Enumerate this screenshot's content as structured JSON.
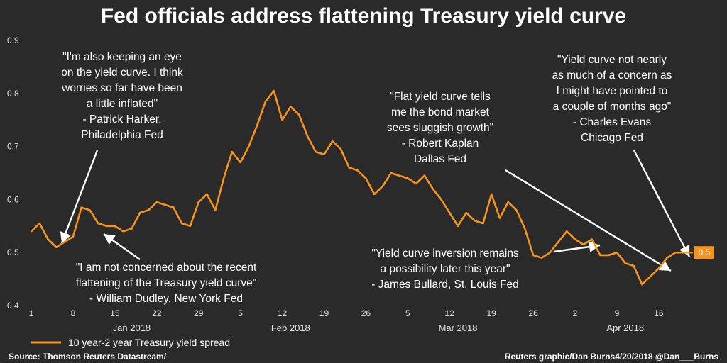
{
  "chart_data": {
    "type": "line",
    "title": "Fed officials address flattening Treasury yield curve",
    "ylim": [
      0.4,
      0.9
    ],
    "yticks": [
      "0.4",
      "0.5",
      "0.6",
      "0.7",
      "0.8",
      "0.9"
    ],
    "xtick_labels": [
      "1",
      "8",
      "15",
      "22",
      "29",
      "5",
      "12",
      "19",
      "26",
      "5",
      "12",
      "19",
      "26",
      "2",
      "9",
      "16"
    ],
    "month_labels": [
      "Jan 2018",
      "Feb 2018",
      "Mar 2018",
      "Apr 2018"
    ],
    "series": [
      {
        "name": "10 year-2 year Treasury yield spread",
        "color": "#f7941d",
        "x": [
          "2018-01-01",
          "2018-01-02",
          "2018-01-03",
          "2018-01-04",
          "2018-01-05",
          "2018-01-08",
          "2018-01-09",
          "2018-01-10",
          "2018-01-11",
          "2018-01-12",
          "2018-01-15",
          "2018-01-16",
          "2018-01-17",
          "2018-01-18",
          "2018-01-19",
          "2018-01-22",
          "2018-01-23",
          "2018-01-24",
          "2018-01-25",
          "2018-01-26",
          "2018-01-29",
          "2018-01-30",
          "2018-01-31",
          "2018-02-01",
          "2018-02-02",
          "2018-02-05",
          "2018-02-06",
          "2018-02-07",
          "2018-02-08",
          "2018-02-09",
          "2018-02-12",
          "2018-02-13",
          "2018-02-14",
          "2018-02-15",
          "2018-02-16",
          "2018-02-19",
          "2018-02-20",
          "2018-02-21",
          "2018-02-22",
          "2018-02-23",
          "2018-02-26",
          "2018-02-27",
          "2018-02-28",
          "2018-03-01",
          "2018-03-02",
          "2018-03-05",
          "2018-03-06",
          "2018-03-07",
          "2018-03-08",
          "2018-03-09",
          "2018-03-12",
          "2018-03-13",
          "2018-03-14",
          "2018-03-15",
          "2018-03-16",
          "2018-03-19",
          "2018-03-20",
          "2018-03-21",
          "2018-03-22",
          "2018-03-23",
          "2018-03-26",
          "2018-03-27",
          "2018-03-28",
          "2018-03-29",
          "2018-03-30",
          "2018-04-02",
          "2018-04-03",
          "2018-04-04",
          "2018-04-05",
          "2018-04-06",
          "2018-04-09",
          "2018-04-10",
          "2018-04-11",
          "2018-04-12",
          "2018-04-13",
          "2018-04-16",
          "2018-04-17",
          "2018-04-18",
          "2018-04-19",
          "2018-04-20"
        ],
        "values": [
          0.54,
          0.555,
          0.525,
          0.51,
          0.52,
          0.53,
          0.585,
          0.58,
          0.555,
          0.55,
          0.55,
          0.54,
          0.545,
          0.575,
          0.58,
          0.595,
          0.59,
          0.585,
          0.555,
          0.55,
          0.595,
          0.61,
          0.58,
          0.64,
          0.69,
          0.67,
          0.7,
          0.74,
          0.785,
          0.805,
          0.75,
          0.775,
          0.76,
          0.72,
          0.69,
          0.685,
          0.71,
          0.695,
          0.66,
          0.655,
          0.64,
          0.61,
          0.625,
          0.65,
          0.645,
          0.64,
          0.63,
          0.645,
          0.62,
          0.6,
          0.575,
          0.55,
          0.575,
          0.56,
          0.555,
          0.61,
          0.565,
          0.595,
          0.58,
          0.545,
          0.495,
          0.49,
          0.5,
          0.52,
          0.54,
          0.525,
          0.515,
          0.525,
          0.495,
          0.495,
          0.5,
          0.48,
          0.475,
          0.44,
          0.455,
          0.47,
          0.49,
          0.5,
          0.5,
          0.5
        ]
      }
    ],
    "last_value_label": "0.5",
    "grid": false,
    "legend": "bottom-left"
  },
  "annotations": [
    {
      "lines": [
        "\"I'm also keeping an eye",
        "on the yield curve. I think",
        "worries so far have been",
        "a little inflated\"",
        "- Patrick Harker,",
        "Philadelphia Fed"
      ]
    },
    {
      "lines": [
        "\"I am not concerned about the recent",
        "flattening of the Treasury yield curve\"",
        "- William Dudley, New York Fed"
      ]
    },
    {
      "lines": [
        "\"Flat yield curve tells",
        "me the bond market",
        "sees sluggish growth\"",
        "- Robert Kaplan",
        "Dallas Fed"
      ]
    },
    {
      "lines": [
        "\"Yield curve not nearly",
        "as much of a concern as",
        "I might have pointed to",
        "a couple of months ago\"",
        "- Charles Evans",
        "Chicago Fed"
      ]
    },
    {
      "lines": [
        "\"Yield curve inversion remains",
        "a possibility later this year\"",
        "- James Bullard, St. Louis Fed"
      ]
    }
  ],
  "footer": {
    "source": "Source: Thomson Reuters Datastream/",
    "credit": "Reuters graphic/Dan Burns4/20/2018 @Dan___Burns"
  }
}
